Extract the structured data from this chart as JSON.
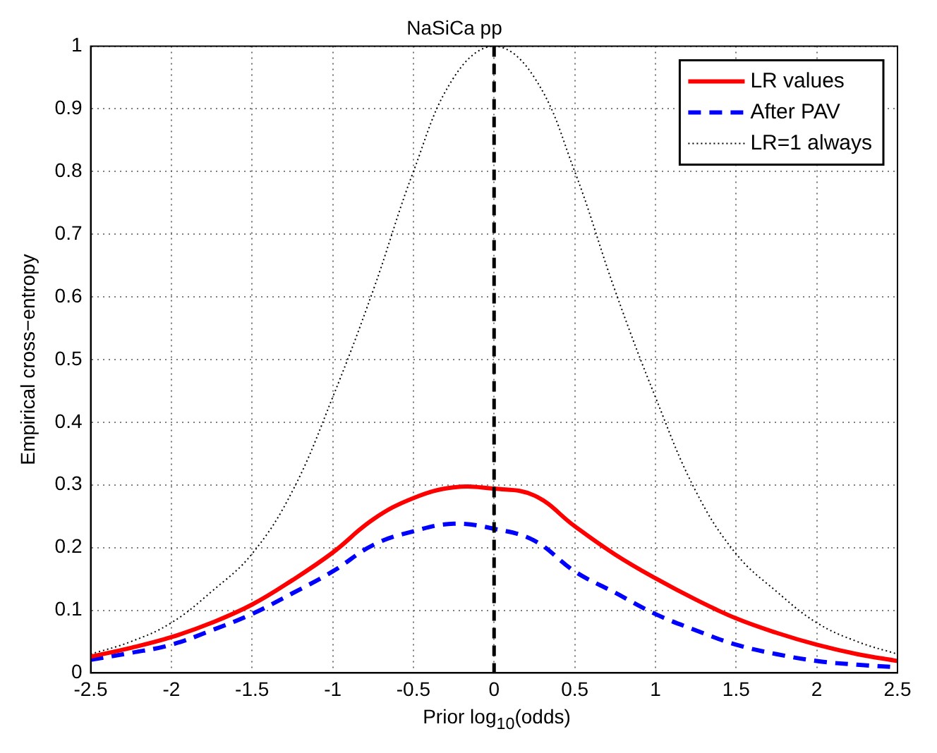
{
  "chart_data": {
    "type": "line",
    "title": "NaSiCa pp",
    "xlabel": "Prior log$_{10}$(odds)",
    "ylabel": "Empirical cross−entropy",
    "x": [
      -2.5,
      -2.25,
      -2,
      -1.75,
      -1.5,
      -1.25,
      -1,
      -0.75,
      -0.5,
      -0.25,
      0,
      0.25,
      0.5,
      0.75,
      1,
      1.25,
      1.5,
      1.75,
      2,
      2.25,
      2.5
    ],
    "series": [
      {
        "name": "LR values",
        "color": "#ff0000",
        "line_style": "solid",
        "values": [
          0.026,
          0.04,
          0.057,
          0.08,
          0.109,
          0.148,
          0.192,
          0.245,
          0.279,
          0.296,
          0.294,
          0.283,
          0.234,
          0.189,
          0.151,
          0.117,
          0.087,
          0.064,
          0.045,
          0.03,
          0.019
        ]
      },
      {
        "name": "After PAV",
        "color": "#0000ff",
        "line_style": "dashed",
        "values": [
          0.021,
          0.032,
          0.045,
          0.068,
          0.094,
          0.127,
          0.162,
          0.204,
          0.226,
          0.238,
          0.23,
          0.211,
          0.162,
          0.128,
          0.094,
          0.068,
          0.045,
          0.03,
          0.019,
          0.013,
          0.009
        ]
      },
      {
        "name": "LR=1 always",
        "color": "#000000",
        "line_style": "dotted",
        "values": [
          0.03,
          0.05,
          0.08,
          0.13,
          0.19,
          0.29,
          0.44,
          0.61,
          0.8,
          0.95,
          1.0,
          0.95,
          0.8,
          0.61,
          0.44,
          0.29,
          0.19,
          0.13,
          0.08,
          0.05,
          0.03
        ]
      }
    ],
    "ref_lines": [
      {
        "axis": "x",
        "value": 0,
        "color": "#000000",
        "line_style": "dashed"
      }
    ],
    "xlim": [
      -2.5,
      2.5
    ],
    "xticks": [
      -2.5,
      -2,
      -1.5,
      -1,
      -0.5,
      0,
      0.5,
      1,
      1.5,
      2,
      2.5
    ],
    "ylim": [
      0,
      1
    ],
    "yticks": [
      0,
      0.1,
      0.2,
      0.3,
      0.4,
      0.5,
      0.6,
      0.7,
      0.8,
      0.9,
      1
    ],
    "grid": true,
    "legend": "top right",
    "marker": "none"
  }
}
